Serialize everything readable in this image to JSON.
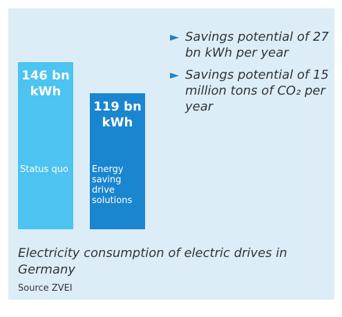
{
  "chart_data": {
    "type": "bar",
    "categories": [
      "Status quo",
      "Energy saving drive solutions"
    ],
    "values": [
      146,
      119
    ],
    "value_labels": [
      "146 bn kWh",
      "119 bn kWh"
    ],
    "colors": [
      "#4cc3f0",
      "#1a86cf"
    ],
    "annotations": [
      "Savings potential of 27 bn kWh per year",
      "Savings potential of 15 million tons of CO₂ per year"
    ],
    "title": "Electricity consumption of electric drives in Germany",
    "source": "Source ZVEI"
  }
}
